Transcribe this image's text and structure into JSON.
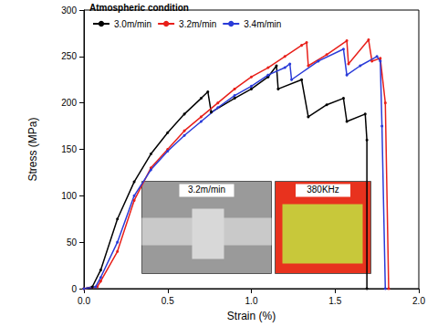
{
  "chart_data": {
    "type": "line",
    "x_label": "Strain (%)",
    "y_label": "Stress (MPa)",
    "legend_title": "Atmospheric condition",
    "legend": "upper left",
    "grid": false,
    "marker": "circle",
    "xlim": [
      0,
      2.0
    ],
    "xticks": [
      {
        "value": 0,
        "label": "0.0"
      },
      {
        "value": 0.5,
        "label": "0.5"
      },
      {
        "value": 1.0,
        "label": "1.0"
      },
      {
        "value": 1.5,
        "label": "1.5"
      },
      {
        "value": 2.0,
        "label": "2.0"
      }
    ],
    "ylim": [
      0,
      300
    ],
    "yticks": [
      0,
      50,
      100,
      150,
      200,
      250,
      300
    ],
    "series": [
      {
        "name": "3.0m/min",
        "color": "#000000",
        "x": [
          0,
          0.05,
          0.1,
          0.2,
          0.3,
          0.4,
          0.5,
          0.6,
          0.7,
          0.74,
          0.76,
          0.9,
          1.0,
          1.1,
          1.15,
          1.16,
          1.3,
          1.34,
          1.45,
          1.55,
          1.57,
          1.68,
          1.69,
          1.69
        ],
        "values": [
          0,
          2,
          20,
          75,
          115,
          145,
          168,
          188,
          205,
          212,
          190,
          205,
          215,
          228,
          240,
          215,
          225,
          185,
          198,
          205,
          180,
          188,
          160,
          0
        ]
      },
      {
        "name": "3.2m/min",
        "color": "#e8201a",
        "x": [
          0,
          0.08,
          0.1,
          0.2,
          0.3,
          0.4,
          0.5,
          0.6,
          0.7,
          0.8,
          0.9,
          1.0,
          1.1,
          1.2,
          1.3,
          1.33,
          1.34,
          1.45,
          1.57,
          1.58,
          1.7,
          1.72,
          1.77,
          1.8,
          1.82
        ],
        "values": [
          0,
          2,
          8,
          40,
          95,
          130,
          150,
          170,
          185,
          200,
          215,
          228,
          238,
          250,
          262,
          265,
          240,
          252,
          267,
          242,
          268,
          245,
          248,
          200,
          0
        ]
      },
      {
        "name": "3.4m/min",
        "color": "#2a3bd8",
        "x": [
          0,
          0.07,
          0.1,
          0.2,
          0.3,
          0.4,
          0.5,
          0.6,
          0.7,
          0.8,
          0.9,
          1.0,
          1.1,
          1.2,
          1.23,
          1.24,
          1.4,
          1.55,
          1.57,
          1.65,
          1.75,
          1.77,
          1.78,
          1.8
        ],
        "values": [
          0,
          2,
          12,
          50,
          100,
          128,
          148,
          165,
          180,
          195,
          208,
          218,
          230,
          238,
          242,
          225,
          245,
          258,
          230,
          240,
          250,
          245,
          175,
          0
        ]
      }
    ],
    "insets": [
      {
        "label": "3.2m/min",
        "color": "#9a9a9a"
      },
      {
        "label": "380KHz",
        "color": "#e8321e"
      }
    ]
  }
}
